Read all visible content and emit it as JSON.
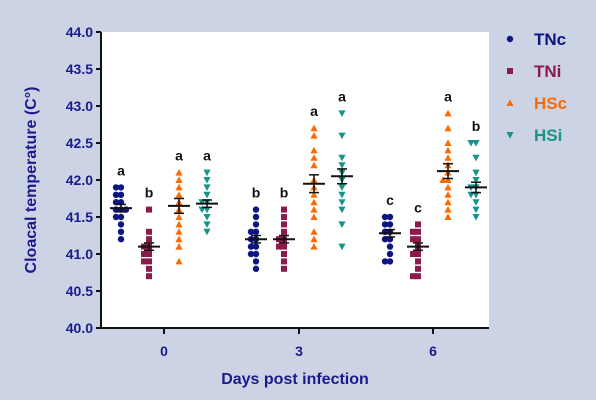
{
  "colors": {
    "background": "#ccd3e4",
    "plot_background": "#ffffff",
    "axis": "#111111",
    "axis_text": "#1a1a8c"
  },
  "chart_data": {
    "type": "scatter",
    "title": "",
    "xlabel": "Days post infection",
    "ylabel": "Cloacal temperature (C°)",
    "ylim": [
      40.0,
      44.0
    ],
    "yticks": [
      "40.0",
      "40.5",
      "41.0",
      "41.5",
      "42.0",
      "42.5",
      "43.0",
      "43.5",
      "44.0"
    ],
    "categories": [
      "0",
      "3",
      "6"
    ],
    "legend_position": "right",
    "series": [
      {
        "name": "TNc",
        "color": "#0d1580",
        "marker": "circle",
        "groups": [
          {
            "mean": 41.62,
            "sem": 0.05,
            "letter": "a",
            "values": [
              41.9,
              41.9,
              41.8,
              41.8,
              41.7,
              41.7,
              41.6,
              41.6,
              41.6,
              41.5,
              41.5,
              41.4,
              41.3,
              41.2
            ]
          },
          {
            "mean": 41.2,
            "sem": 0.05,
            "letter": "b",
            "values": [
              41.6,
              41.5,
              41.4,
              41.3,
              41.3,
              41.2,
              41.2,
              41.1,
              41.1,
              41.0,
              41.0,
              40.9,
              40.8
            ]
          },
          {
            "mean": 41.28,
            "sem": 0.05,
            "letter": "c",
            "values": [
              41.5,
              41.5,
              41.4,
              41.4,
              41.3,
              41.3,
              41.2,
              41.2,
              41.1,
              41.0,
              40.9,
              40.9
            ]
          }
        ]
      },
      {
        "name": "TNi",
        "color": "#8c1a4a",
        "marker": "square",
        "groups": [
          {
            "mean": 41.1,
            "sem": 0.05,
            "letter": "b",
            "values": [
              41.6,
              41.3,
              41.2,
              41.1,
              41.1,
              41.0,
              41.0,
              40.9,
              40.9,
              40.8,
              40.7
            ]
          },
          {
            "mean": 41.2,
            "sem": 0.05,
            "letter": "b",
            "values": [
              41.6,
              41.5,
              41.4,
              41.3,
              41.2,
              41.2,
              41.1,
              41.1,
              41.0,
              40.9,
              40.8
            ]
          },
          {
            "mean": 41.1,
            "sem": 0.05,
            "letter": "c",
            "values": [
              41.4,
              41.3,
              41.3,
              41.2,
              41.2,
              41.1,
              41.0,
              41.0,
              40.9,
              40.8,
              40.7,
              40.7
            ]
          }
        ]
      },
      {
        "name": "HSc",
        "color": "#ff6a00",
        "marker": "triangle-up",
        "groups": [
          {
            "mean": 41.65,
            "sem": 0.1,
            "letter": "a",
            "values": [
              42.1,
              42.0,
              41.9,
              41.8,
              41.7,
              41.6,
              41.5,
              41.4,
              41.3,
              41.2,
              41.1,
              40.9
            ]
          },
          {
            "mean": 41.95,
            "sem": 0.12,
            "letter": "a",
            "values": [
              42.7,
              42.6,
              42.4,
              42.3,
              42.2,
              42.0,
              41.9,
              41.8,
              41.7,
              41.6,
              41.5,
              41.3,
              41.2,
              41.1
            ]
          },
          {
            "mean": 42.12,
            "sem": 0.1,
            "letter": "a",
            "values": [
              42.9,
              42.7,
              42.5,
              42.4,
              42.3,
              42.2,
              42.1,
              42.0,
              42.0,
              41.9,
              41.8,
              41.7,
              41.6,
              41.5
            ]
          }
        ]
      },
      {
        "name": "HSi",
        "color": "#17948a",
        "marker": "triangle-down",
        "groups": [
          {
            "mean": 41.68,
            "sem": 0.05,
            "letter": "a",
            "values": [
              42.1,
              42.0,
              41.9,
              41.8,
              41.7,
              41.7,
              41.6,
              41.6,
              41.5,
              41.4,
              41.3
            ]
          },
          {
            "mean": 42.05,
            "sem": 0.1,
            "letter": "a",
            "values": [
              42.9,
              42.6,
              42.3,
              42.2,
              42.1,
              42.0,
              41.9,
              41.8,
              41.7,
              41.6,
              41.4,
              41.1
            ]
          },
          {
            "mean": 41.9,
            "sem": 0.07,
            "letter": "b",
            "values": [
              42.5,
              42.5,
              42.3,
              42.1,
              42.0,
              41.9,
              41.9,
              41.8,
              41.8,
              41.7,
              41.6,
              41.5
            ]
          }
        ]
      }
    ]
  }
}
